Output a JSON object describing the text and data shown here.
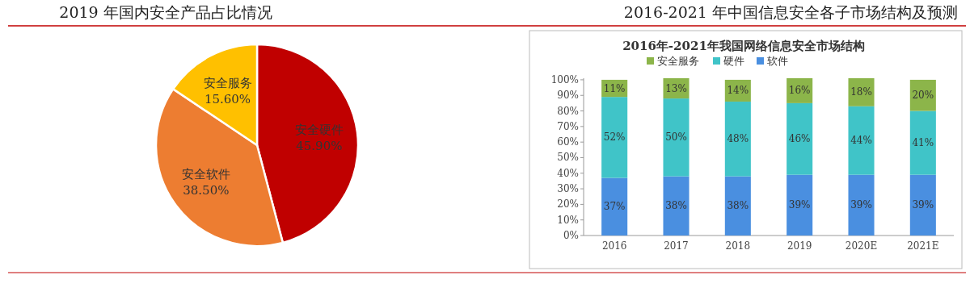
{
  "chart_data": [
    {
      "type": "pie",
      "title": "2019 年国内安全产品占比情况",
      "categories": [
        "安全硬件",
        "安全软件",
        "安全服务"
      ],
      "values": [
        45.9,
        38.5,
        15.6
      ],
      "colors": [
        "#c00000",
        "#ed7d31",
        "#ffc000"
      ],
      "value_labels": [
        "45.90%",
        "38.50%",
        "15.60%"
      ]
    },
    {
      "type": "bar",
      "title": "2016-2021 年中国信息安全各子市场结构及预测",
      "subtitle": "2016年-2021年我国网络信息安全市场结构",
      "categories": [
        "2016",
        "2017",
        "2018",
        "2019",
        "2020E",
        "2021E"
      ],
      "stacked": true,
      "legend": "top",
      "ylim": [
        0,
        101
      ],
      "yticks": [
        {
          "value": 0,
          "label": "0%"
        },
        {
          "value": 10,
          "label": "10%"
        },
        {
          "value": 20,
          "label": "20%"
        },
        {
          "value": 30,
          "label": "30%"
        },
        {
          "value": 40,
          "label": "40%"
        },
        {
          "value": 50,
          "label": "50%"
        },
        {
          "value": 60,
          "label": "60%"
        },
        {
          "value": 70,
          "label": "70%"
        },
        {
          "value": 80,
          "label": "80%"
        },
        {
          "value": 90,
          "label": "90%"
        },
        {
          "value": 100,
          "label": "100%"
        }
      ],
      "series": [
        {
          "name": "软件",
          "color": "#4a8fe0",
          "values": [
            37,
            38,
            38,
            39,
            39,
            39
          ],
          "value_labels": [
            "37%",
            "38%",
            "38%",
            "39%",
            "39%",
            "39%"
          ]
        },
        {
          "name": "硬件",
          "color": "#40c4c8",
          "values": [
            52,
            50,
            48,
            46,
            44,
            41
          ],
          "value_labels": [
            "52%",
            "50%",
            "48%",
            "46%",
            "44%",
            "41%"
          ]
        },
        {
          "name": "安全服务",
          "color": "#8cb54a",
          "values": [
            11,
            13,
            14,
            16,
            18,
            20
          ],
          "value_labels": [
            "11%",
            "13%",
            "14%",
            "16%",
            "18%",
            "20%"
          ]
        }
      ]
    }
  ]
}
